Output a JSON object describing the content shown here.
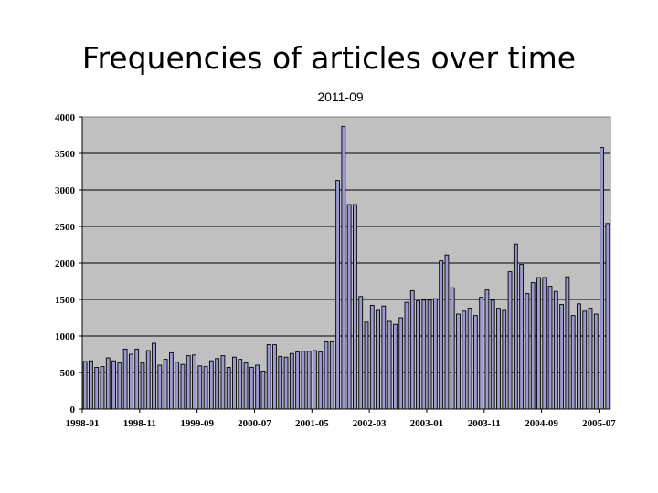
{
  "slide": {
    "title": "Frequencies of articles over time"
  },
  "chart_data": {
    "type": "bar",
    "title": "Frequencies of articles over time",
    "subtitle": "2011-09",
    "xlabel": "",
    "ylabel": "",
    "ylim": [
      0,
      4000
    ],
    "yticks": [
      0,
      500,
      1000,
      1500,
      2000,
      2500,
      3000,
      3500,
      4000
    ],
    "grid": true,
    "legend": "none",
    "x_tick_labels": [
      "1998-01",
      "1998-11",
      "1999-09",
      "2000-07",
      "2001-05",
      "2002-03",
      "2003-01",
      "2003-11",
      "2004-09",
      "2005-07"
    ],
    "categories": [
      "1998-01",
      "1998-02",
      "1998-03",
      "1998-04",
      "1998-05",
      "1998-06",
      "1998-07",
      "1998-08",
      "1998-09",
      "1998-10",
      "1998-11",
      "1998-12",
      "1999-01",
      "1999-02",
      "1999-03",
      "1999-04",
      "1999-05",
      "1999-06",
      "1999-07",
      "1999-08",
      "1999-09",
      "1999-10",
      "1999-11",
      "1999-12",
      "2000-01",
      "2000-02",
      "2000-03",
      "2000-04",
      "2000-05",
      "2000-06",
      "2000-07",
      "2000-08",
      "2000-09",
      "2000-10",
      "2000-11",
      "2000-12",
      "2001-01",
      "2001-02",
      "2001-03",
      "2001-04",
      "2001-05",
      "2001-06",
      "2001-07",
      "2001-08",
      "2001-09",
      "2001-10",
      "2001-11",
      "2001-12",
      "2002-01",
      "2002-02",
      "2002-03",
      "2002-04",
      "2002-05",
      "2002-06",
      "2002-07",
      "2002-08",
      "2002-09",
      "2002-10",
      "2002-11",
      "2002-12",
      "2003-01",
      "2003-02",
      "2003-03",
      "2003-04",
      "2003-05",
      "2003-06",
      "2003-07",
      "2003-08",
      "2003-09",
      "2003-10",
      "2003-11",
      "2003-12",
      "2004-01",
      "2004-02",
      "2004-03",
      "2004-04",
      "2004-05",
      "2004-06",
      "2004-07",
      "2004-08",
      "2004-09",
      "2004-10",
      "2004-11",
      "2004-12",
      "2005-01",
      "2005-02",
      "2005-03",
      "2005-04",
      "2005-05",
      "2005-06",
      "2005-07",
      "2005-08"
    ],
    "values": [
      650,
      660,
      570,
      580,
      700,
      660,
      630,
      820,
      750,
      820,
      630,
      800,
      900,
      600,
      680,
      770,
      640,
      610,
      730,
      740,
      590,
      580,
      660,
      690,
      730,
      570,
      710,
      680,
      630,
      570,
      600,
      520,
      880,
      880,
      720,
      710,
      760,
      780,
      790,
      790,
      800,
      780,
      920,
      920,
      3130,
      3870,
      2800,
      2800,
      1540,
      1190,
      1420,
      1350,
      1410,
      1200,
      1160,
      1250,
      1460,
      1620,
      1480,
      1490,
      1490,
      1510,
      2030,
      2110,
      1660,
      1300,
      1340,
      1380,
      1280,
      1530,
      1630,
      1490,
      1380,
      1350,
      1880,
      2260,
      1980,
      1580,
      1730,
      1800,
      1800,
      1680,
      1610,
      1430,
      1810,
      1280,
      1440,
      1340,
      1380,
      1300,
      3580,
      2540
    ],
    "colors": {
      "plot_bg": "#c0c0c0",
      "bar_fill": "#9b9bd1",
      "bar_edge": "#000000",
      "gridline": "#000000"
    }
  }
}
